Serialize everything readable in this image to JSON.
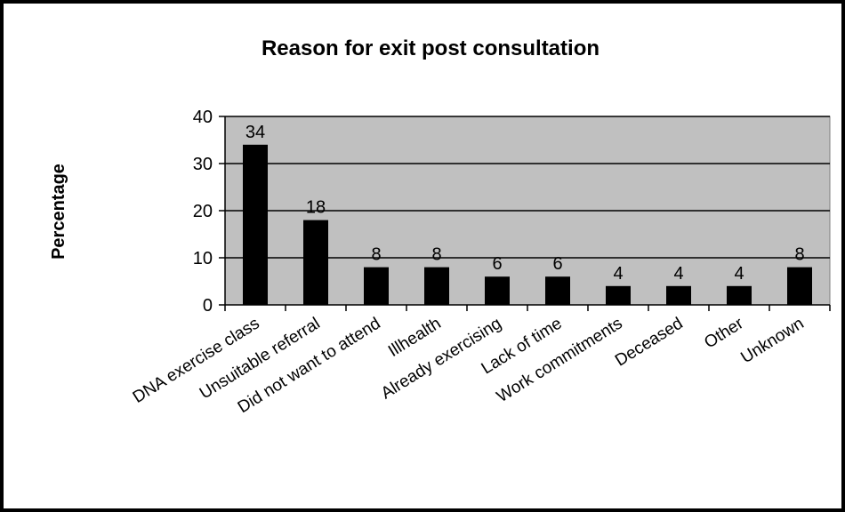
{
  "chart_data": {
    "type": "bar",
    "title": "Reason for exit post consultation",
    "xlabel": "",
    "ylabel": "Percentage",
    "ylim": [
      0,
      40
    ],
    "yticks": [
      0,
      10,
      20,
      30,
      40
    ],
    "grid": true,
    "legend": "none",
    "categories": [
      "DNA exercise class",
      "Unsuitable referral",
      "Did not want to attend",
      "Illhealth",
      "Already exercising",
      "Lack of time",
      "Work commitments",
      "Deceased",
      "Other",
      "Unknown"
    ],
    "values": [
      34,
      18,
      8,
      8,
      6,
      6,
      4,
      4,
      4,
      8
    ],
    "colors": {
      "plot_background": "#c0c0c0",
      "bar": "#000000",
      "gridline": "#000000"
    }
  }
}
